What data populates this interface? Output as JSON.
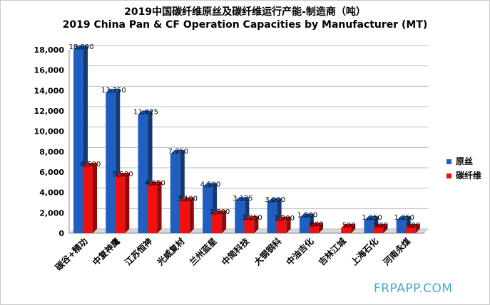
{
  "chart_data": {
    "type": "bar",
    "title": "2019中国碳纤维原丝及碳纤维运行产能-制造商（吨）",
    "subtitle": "2019 China Pan & CF Operation Capacities by Manufacturer (MT)",
    "categories": [
      "碳谷+精功",
      "中复神鹰",
      "江苏恒神",
      "光威复材",
      "兰州蓝星",
      "中简科技",
      "大钢钢科",
      "中油吉化",
      "吉林江城",
      "上海石化",
      "河南永煤"
    ],
    "series": [
      {
        "name": "原丝",
        "color": "#1f5fc0",
        "values": [
          18000,
          13750,
          11625,
          7750,
          4500,
          3125,
          3000,
          1500,
          null,
          1250,
          1250
        ],
        "labels": [
          "18,000",
          "13,750",
          "11,625",
          "7,750",
          "4,500",
          "3,125",
          "3,000",
          "1,500",
          "",
          "1,250",
          "1,250"
        ]
      },
      {
        "name": "碳纤维",
        "color": "#ee1111",
        "values": [
          6500,
          5500,
          4650,
          3100,
          1800,
          1250,
          1200,
          600,
          500,
          500,
          500
        ],
        "labels": [
          "6,500",
          "5,500",
          "4,650",
          "3,100",
          "1,800",
          "1,250",
          "1,200",
          "600",
          "500",
          "500",
          "500"
        ]
      }
    ],
    "ylim": [
      0,
      18000
    ],
    "yticks": [
      "0",
      "2,000",
      "4,000",
      "6,000",
      "8,000",
      "10,000",
      "12,000",
      "14,000",
      "16,000",
      "18,000"
    ],
    "grid": true,
    "legend": "right"
  },
  "watermark": "FRPAPP.COM"
}
